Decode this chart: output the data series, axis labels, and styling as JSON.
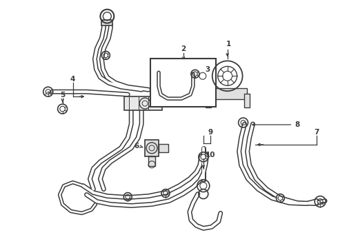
{
  "background_color": "#ffffff",
  "line_color": "#3a3a3a",
  "fig_width": 4.9,
  "fig_height": 3.6,
  "dpi": 100,
  "label_fontsize": 7.5,
  "label_color": "#000000"
}
